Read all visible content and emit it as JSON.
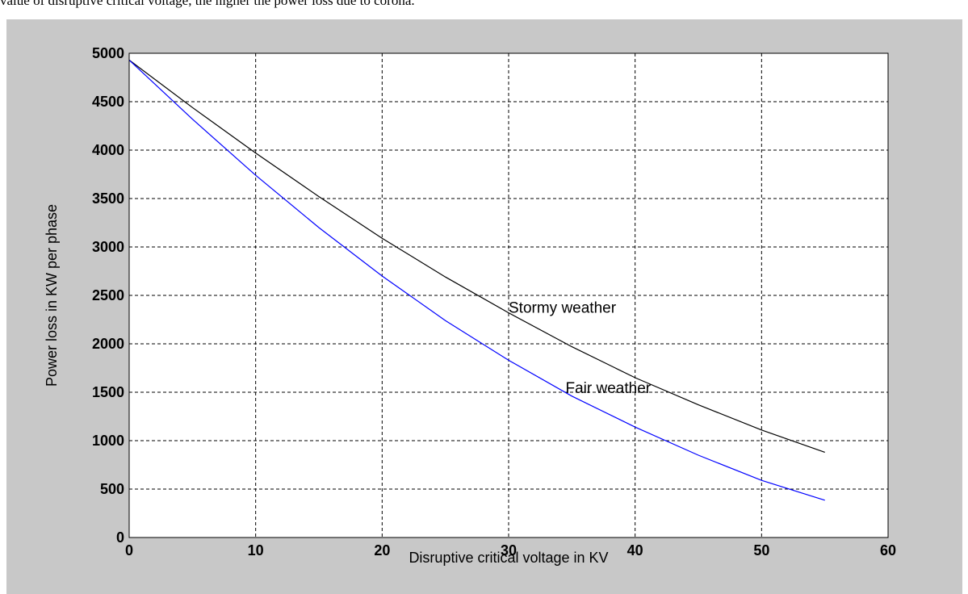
{
  "caption": "value of disruptive critical voltage, the higher the power loss due to corona.",
  "chart_data": {
    "type": "line",
    "xlabel": "Disruptive critical voltage in KV",
    "ylabel": "Power loss in KW per phase",
    "xlim": [
      0,
      60
    ],
    "ylim": [
      0,
      5000
    ],
    "xticks": [
      0,
      10,
      20,
      30,
      40,
      50,
      60
    ],
    "yticks": [
      0,
      500,
      1000,
      1500,
      2000,
      2500,
      3000,
      3500,
      4000,
      4500,
      5000
    ],
    "grid": true,
    "x": [
      0,
      5,
      10,
      15,
      20,
      25,
      30,
      35,
      40,
      45,
      50,
      55
    ],
    "series": [
      {
        "name": "Stormy weather",
        "color": "#000000",
        "values": [
          4930,
          4440,
          3970,
          3520,
          3090,
          2690,
          2320,
          1970,
          1650,
          1370,
          1110,
          880
        ]
      },
      {
        "name": "Fair weather",
        "color": "#0000ff",
        "values": [
          4930,
          4320,
          3740,
          3200,
          2700,
          2240,
          1830,
          1460,
          1140,
          850,
          590,
          385
        ]
      }
    ],
    "annotations": [
      {
        "text": "Stormy weather",
        "x": 30,
        "y": 2380
      },
      {
        "text": "Fair weather",
        "x": 34.5,
        "y": 1550
      }
    ]
  }
}
